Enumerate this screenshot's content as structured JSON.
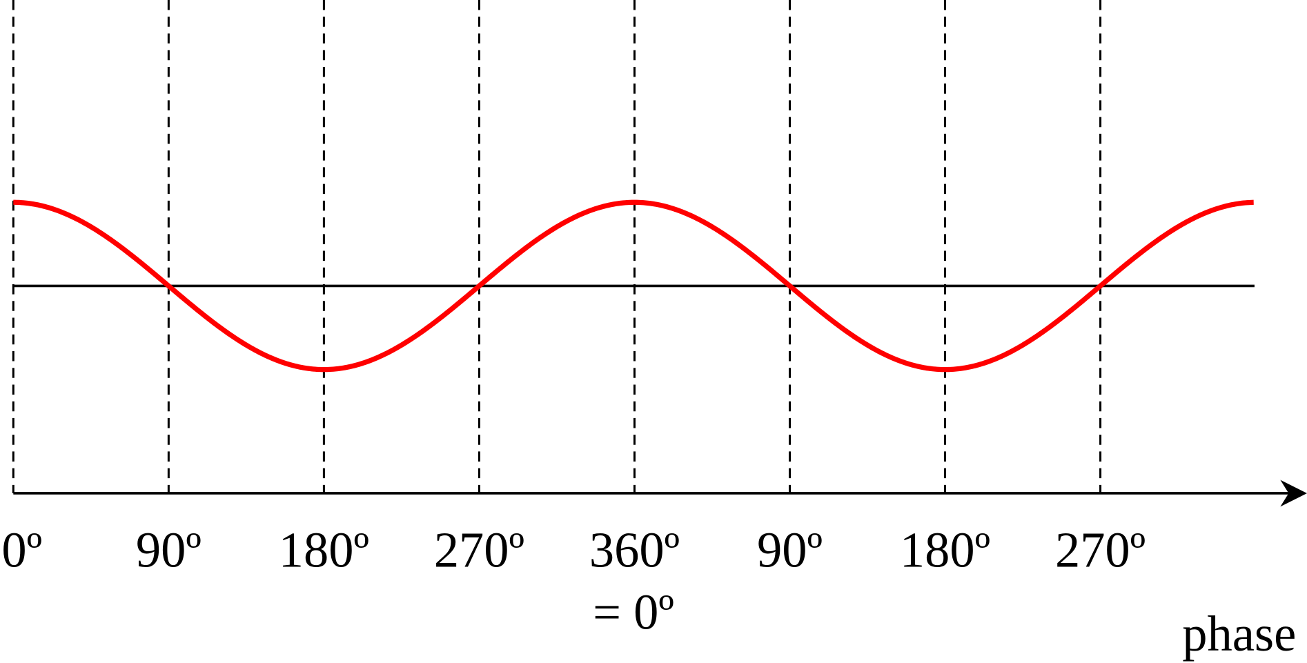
{
  "tick_labels": [
    "0º",
    "90º",
    "180º",
    "270º",
    "360º",
    "90º",
    "180º",
    "270º"
  ],
  "note": "= 0º",
  "axis_label": "phase"
}
